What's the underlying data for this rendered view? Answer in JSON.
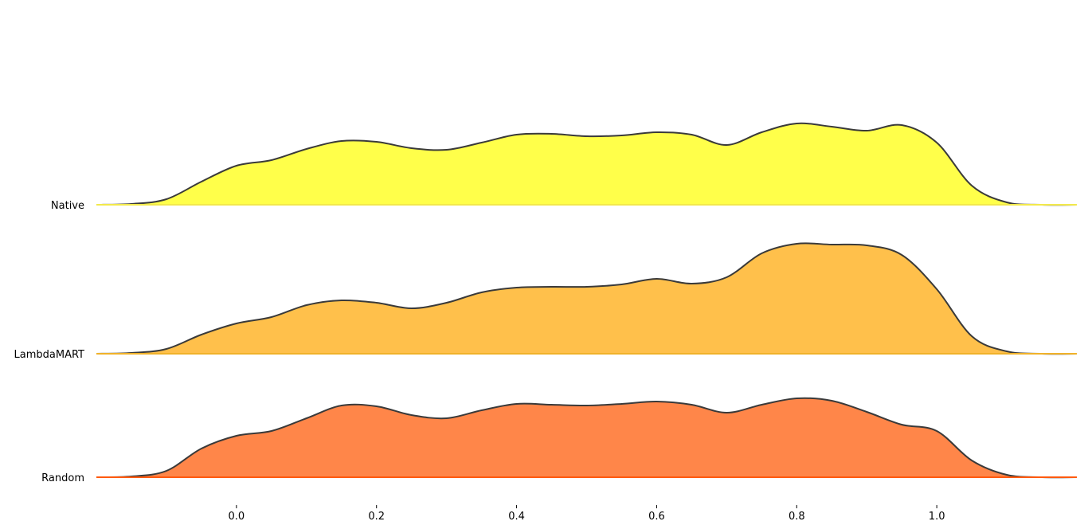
{
  "chart_data": {
    "type": "area",
    "subtype": "ridgeline",
    "title": "",
    "xlabel": "",
    "ylabel": "",
    "xlim": [
      -0.2,
      1.2
    ],
    "x_ticks": [
      0.0,
      0.2,
      0.4,
      0.6,
      0.8,
      1.0
    ],
    "x_tick_labels": [
      "0.0",
      "0.2",
      "0.4",
      "0.6",
      "0.8",
      "1.0"
    ],
    "grid": false,
    "legend": "none",
    "line_color": "#3a3a3a",
    "series": [
      {
        "name": "Native",
        "fill": "#ffff4a",
        "baseline_color": "#f2e94c",
        "x": [
          -0.2,
          -0.15,
          -0.1,
          -0.05,
          0.0,
          0.05,
          0.1,
          0.15,
          0.2,
          0.25,
          0.3,
          0.35,
          0.4,
          0.45,
          0.5,
          0.55,
          0.6,
          0.65,
          0.7,
          0.75,
          0.8,
          0.85,
          0.9,
          0.95,
          1.0,
          1.05,
          1.1,
          1.15,
          1.2
        ],
        "density": [
          0.0,
          0.01,
          0.07,
          0.29,
          0.49,
          0.56,
          0.7,
          0.8,
          0.79,
          0.71,
          0.69,
          0.78,
          0.88,
          0.89,
          0.86,
          0.87,
          0.91,
          0.88,
          0.75,
          0.91,
          1.02,
          0.98,
          0.93,
          1.0,
          0.78,
          0.24,
          0.03,
          0.0,
          0.0
        ]
      },
      {
        "name": "LambdaMART",
        "fill": "#ffc04b",
        "baseline_color": "#f0b22a",
        "x": [
          -0.2,
          -0.15,
          -0.1,
          -0.05,
          0.0,
          0.05,
          0.1,
          0.15,
          0.2,
          0.25,
          0.3,
          0.35,
          0.4,
          0.45,
          0.5,
          0.55,
          0.6,
          0.65,
          0.7,
          0.75,
          0.8,
          0.85,
          0.9,
          0.95,
          1.0,
          1.05,
          1.1,
          1.15,
          1.2
        ],
        "density": [
          0.0,
          0.01,
          0.06,
          0.24,
          0.38,
          0.46,
          0.61,
          0.67,
          0.64,
          0.57,
          0.64,
          0.77,
          0.83,
          0.84,
          0.84,
          0.87,
          0.94,
          0.88,
          0.96,
          1.26,
          1.38,
          1.37,
          1.36,
          1.24,
          0.81,
          0.22,
          0.03,
          0.0,
          0.0
        ]
      },
      {
        "name": "Random",
        "fill": "#ff8649",
        "baseline_color": "#ff5a0f",
        "x": [
          -0.2,
          -0.15,
          -0.1,
          -0.05,
          0.0,
          0.05,
          0.1,
          0.15,
          0.2,
          0.25,
          0.3,
          0.35,
          0.4,
          0.45,
          0.5,
          0.55,
          0.6,
          0.65,
          0.7,
          0.75,
          0.8,
          0.85,
          0.9,
          0.95,
          1.0,
          1.05,
          1.1,
          1.15,
          1.2
        ],
        "density": [
          0.0,
          0.01,
          0.08,
          0.36,
          0.52,
          0.58,
          0.74,
          0.9,
          0.89,
          0.78,
          0.74,
          0.84,
          0.92,
          0.91,
          0.9,
          0.92,
          0.95,
          0.91,
          0.81,
          0.91,
          0.99,
          0.96,
          0.82,
          0.66,
          0.58,
          0.21,
          0.03,
          0.0,
          0.0
        ]
      }
    ]
  }
}
